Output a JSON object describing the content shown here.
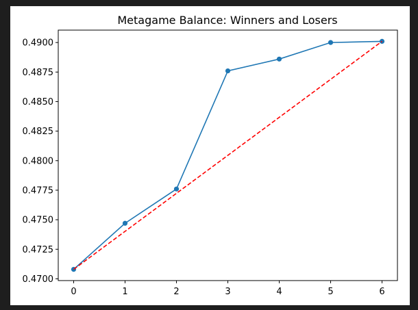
{
  "chart_data": {
    "type": "line",
    "title": "Metagame Balance: Winners and Losers",
    "xlabel": "",
    "ylabel": "",
    "xlim": [
      -0.3,
      6.3
    ],
    "ylim": [
      0.46985,
      0.49105
    ],
    "x_ticks": [
      0,
      1,
      2,
      3,
      4,
      5,
      6
    ],
    "y_ticks": [
      0.47,
      0.4725,
      0.475,
      0.4775,
      0.48,
      0.4825,
      0.485,
      0.4875,
      0.49
    ],
    "y_tick_labels": [
      "0.4700",
      "0.4725",
      "0.4750",
      "0.4775",
      "0.4800",
      "0.4825",
      "0.4850",
      "0.4875",
      "0.4900"
    ],
    "grid": false,
    "series": [
      {
        "x": [
          0,
          1,
          2,
          3,
          4,
          5,
          6
        ],
        "values": [
          0.4708,
          0.4747,
          0.4776,
          0.4876,
          0.4886,
          0.49,
          0.4901
        ],
        "color": "#1f77b4",
        "line_style": "solid",
        "marker": "circle"
      },
      {
        "x": [
          0,
          6
        ],
        "values": [
          0.4708,
          0.4901
        ],
        "color": "#ff0000",
        "line_style": "dashed",
        "marker": "none"
      }
    ]
  }
}
